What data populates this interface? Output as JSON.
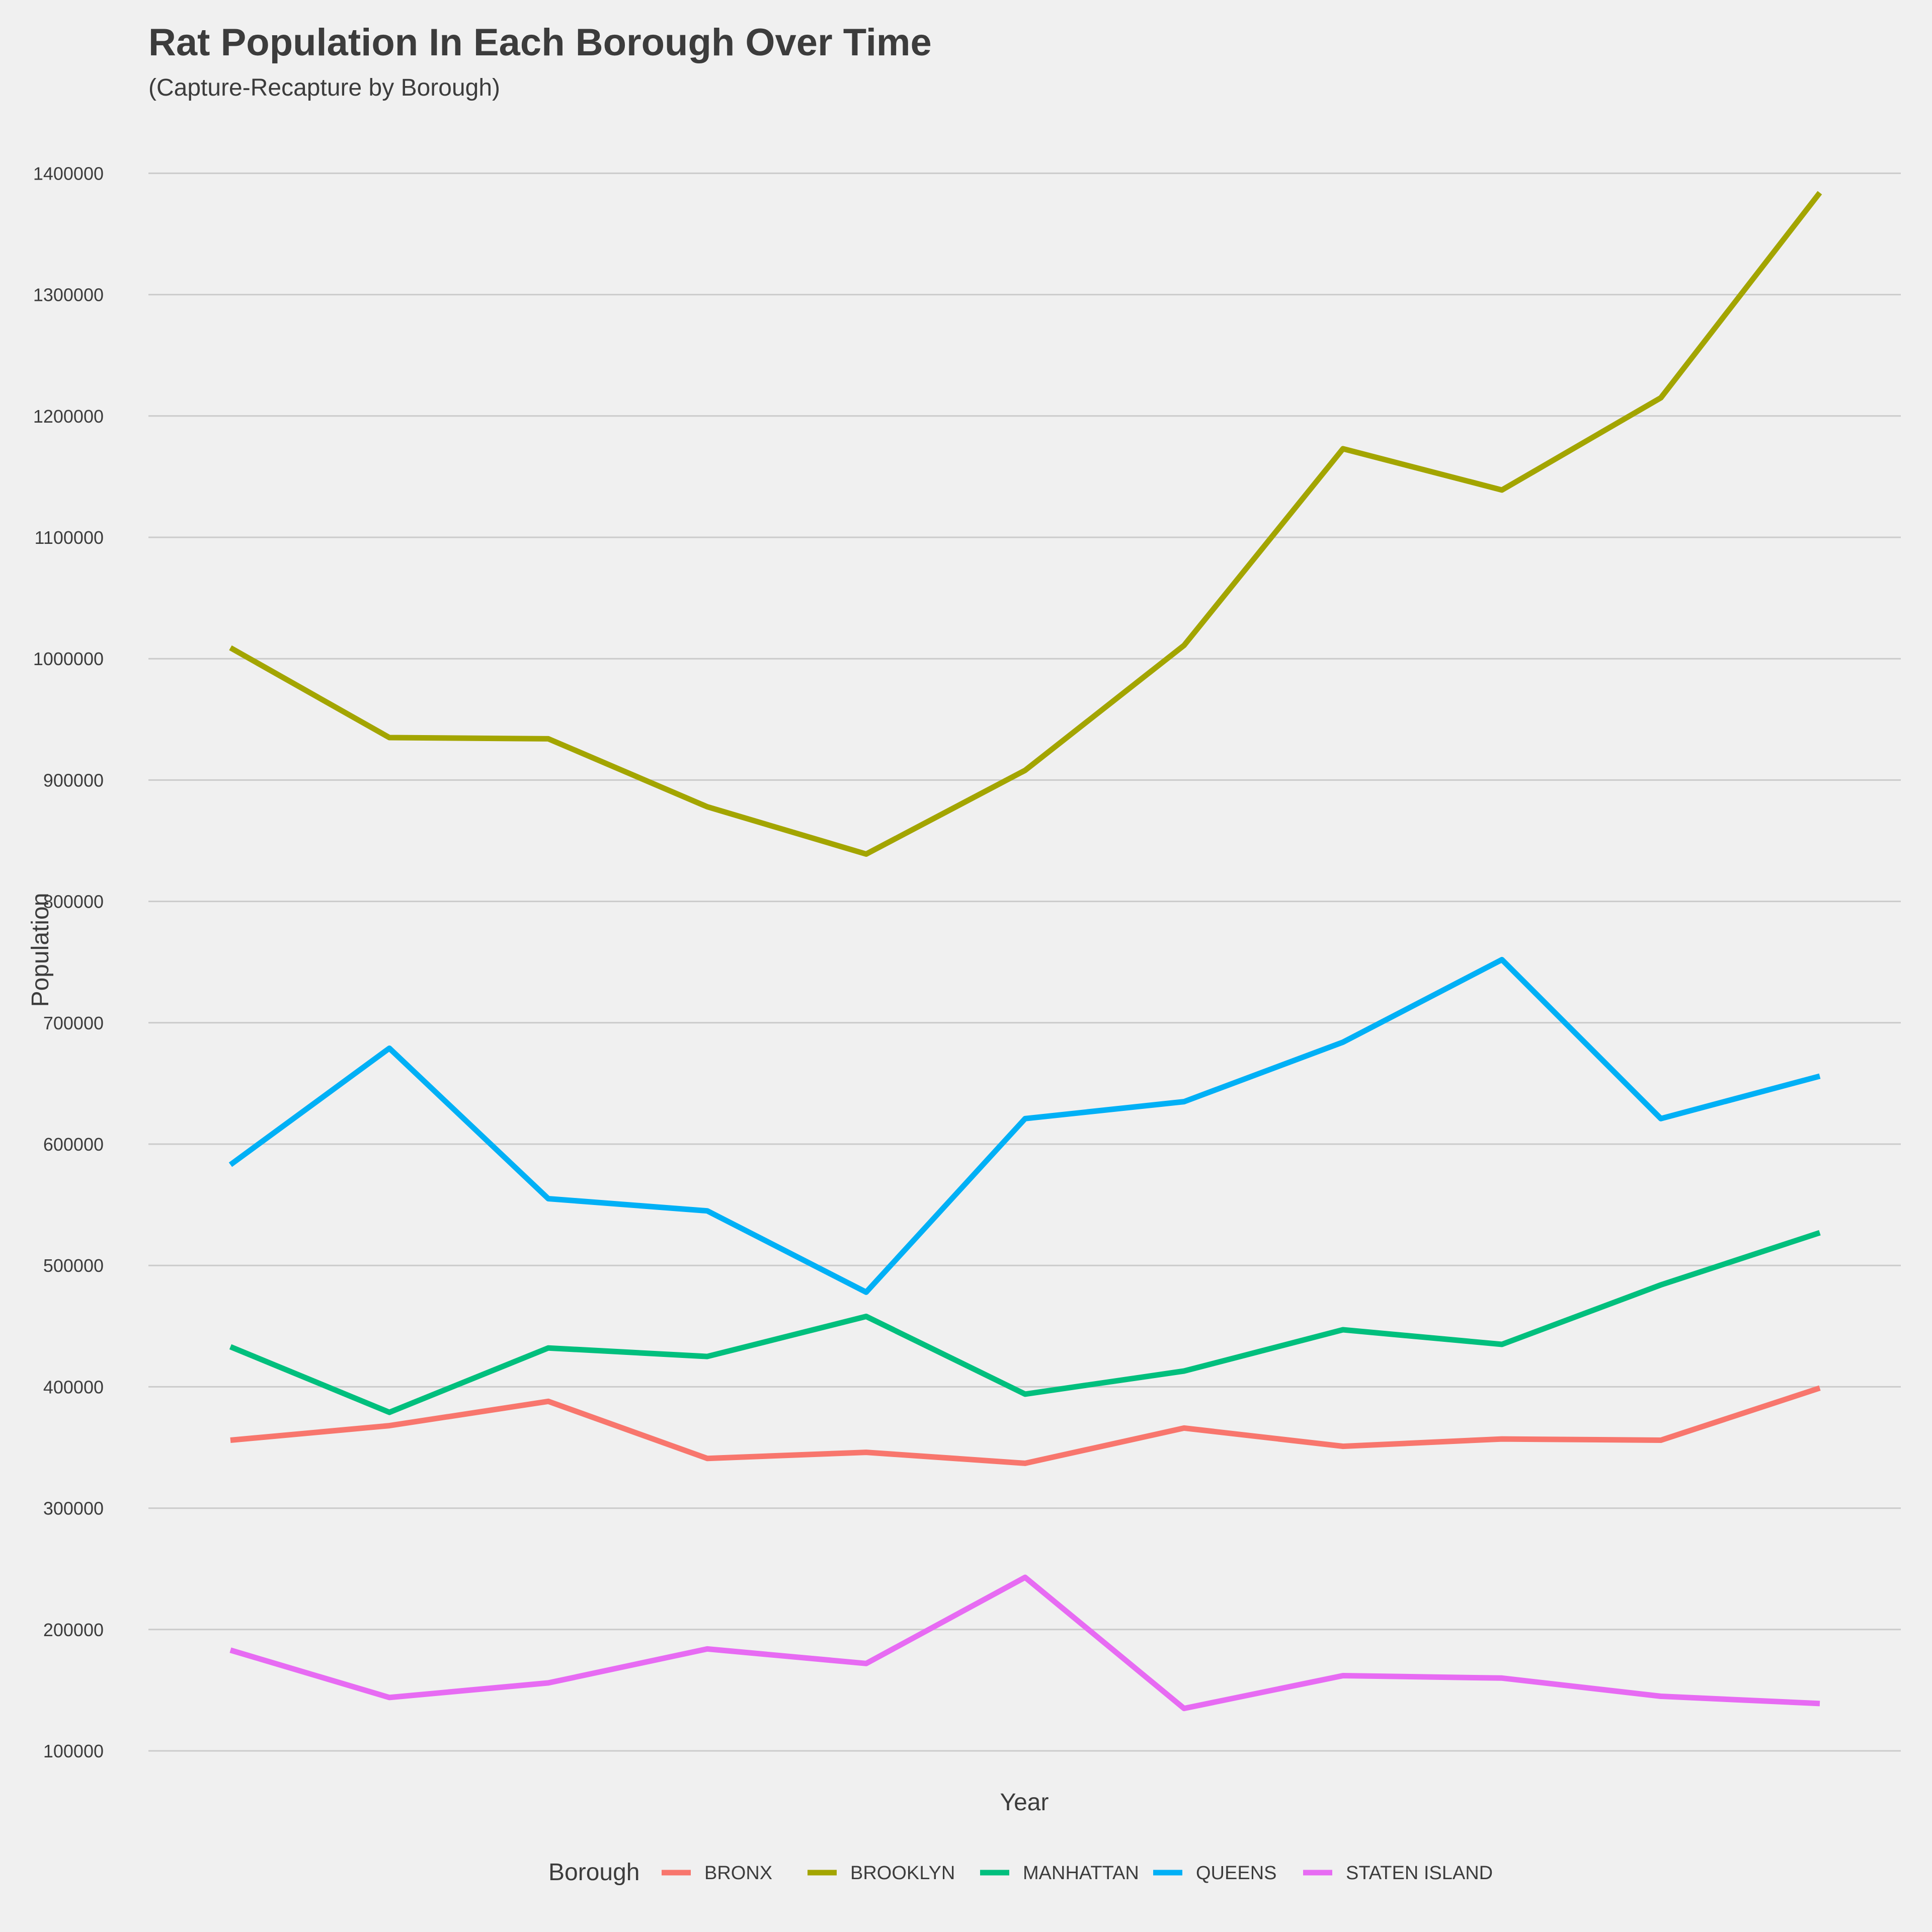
{
  "chart_data": {
    "type": "line",
    "title": "Rat Population In Each Borough Over Time",
    "subtitle": "(Capture-Recapture by Borough)",
    "xlabel": "Year",
    "ylabel": "Population",
    "x": [
      1,
      2,
      3,
      4,
      5,
      6,
      7,
      8,
      9,
      10,
      11
    ],
    "x_tick_labels": [],
    "ylim": [
      85000,
      1400000
    ],
    "y_ticks": [
      100000,
      200000,
      300000,
      400000,
      500000,
      600000,
      700000,
      800000,
      900000,
      1000000,
      1100000,
      1200000,
      1300000,
      1400000
    ],
    "y_tick_labels": [
      "100000",
      "200000",
      "300000",
      "400000",
      "500000",
      "600000",
      "700000",
      "800000",
      "900000",
      "1000000",
      "1100000",
      "1200000",
      "1300000",
      "1400000"
    ],
    "grid": "horizontal",
    "legend": {
      "title": "Borough",
      "position": "bottom"
    },
    "series": [
      {
        "name": "BRONX",
        "color": "#F8766D",
        "values": [
          356000,
          368000,
          388000,
          341000,
          346000,
          337000,
          366000,
          351000,
          357000,
          356000,
          399000
        ]
      },
      {
        "name": "BROOKLYN",
        "color": "#A3A500",
        "values": [
          1009000,
          935000,
          934000,
          878000,
          839000,
          908000,
          1011000,
          1173000,
          1139000,
          1215000,
          1384000
        ]
      },
      {
        "name": "MANHATTAN",
        "color": "#00BF7D",
        "values": [
          433000,
          379000,
          432000,
          425000,
          458000,
          394000,
          413000,
          447000,
          435000,
          484000,
          527000
        ]
      },
      {
        "name": "QUEENS",
        "color": "#00B0F6",
        "values": [
          583000,
          679000,
          555000,
          545000,
          478000,
          621000,
          635000,
          684000,
          752000,
          621000,
          656000
        ]
      },
      {
        "name": "STATEN ISLAND",
        "color": "#E76BF3",
        "values": [
          183000,
          144000,
          156000,
          184000,
          172000,
          243000,
          135000,
          162000,
          160000,
          145000,
          139000
        ]
      }
    ]
  }
}
